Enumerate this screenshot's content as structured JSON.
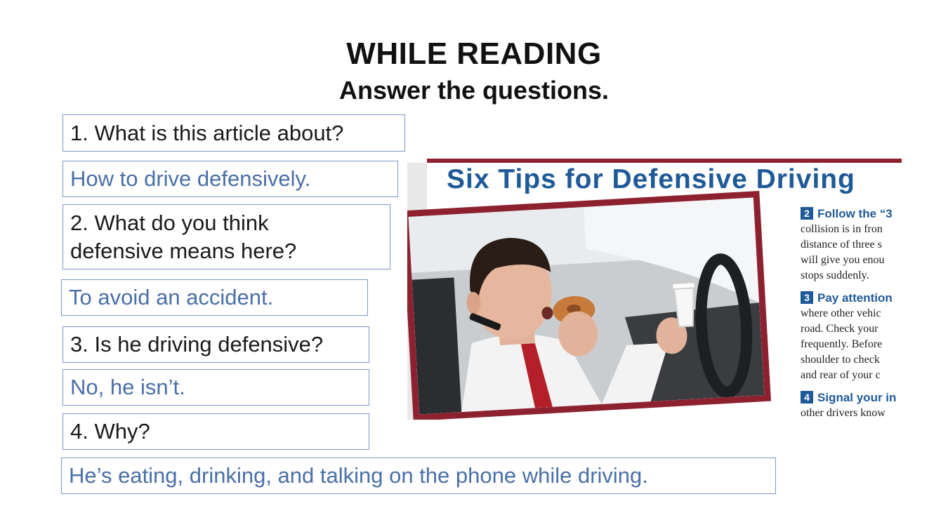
{
  "header": {
    "title": "WHILE READING",
    "subtitle": "Answer the questions."
  },
  "qa": [
    {
      "question": "1. What is this article about?",
      "answer": "How to drive defensively."
    },
    {
      "question": "2. What do you think defensive means here?",
      "answer": "To avoid an accident."
    },
    {
      "question": "3. Is he driving defensive?",
      "answer": "No, he isn’t."
    },
    {
      "question": "4. Why?",
      "answer": "He’s eating, drinking, and talking on the phone while driving."
    }
  ],
  "article": {
    "heading": "Six Tips for Defensive Driving",
    "tips": [
      {
        "number": "2",
        "title": "Follow the “3",
        "lines": [
          "collision is in fron",
          "distance of three s",
          "will give you enou",
          "stops suddenly."
        ]
      },
      {
        "number": "3",
        "title": "Pay attention",
        "lines": [
          "where other vehic",
          "road. Check your",
          "frequently. Before",
          "shoulder to check",
          "and rear of your c"
        ]
      },
      {
        "number": "4",
        "title": "Signal your in",
        "lines": [
          "other drivers know"
        ]
      }
    ]
  },
  "colors": {
    "question_text": "#1a1a1a",
    "answer_text": "#4a6fa8",
    "box_border": "#7d97c4",
    "article_accent": "#8e2130",
    "article_heading": "#1f5a98"
  }
}
